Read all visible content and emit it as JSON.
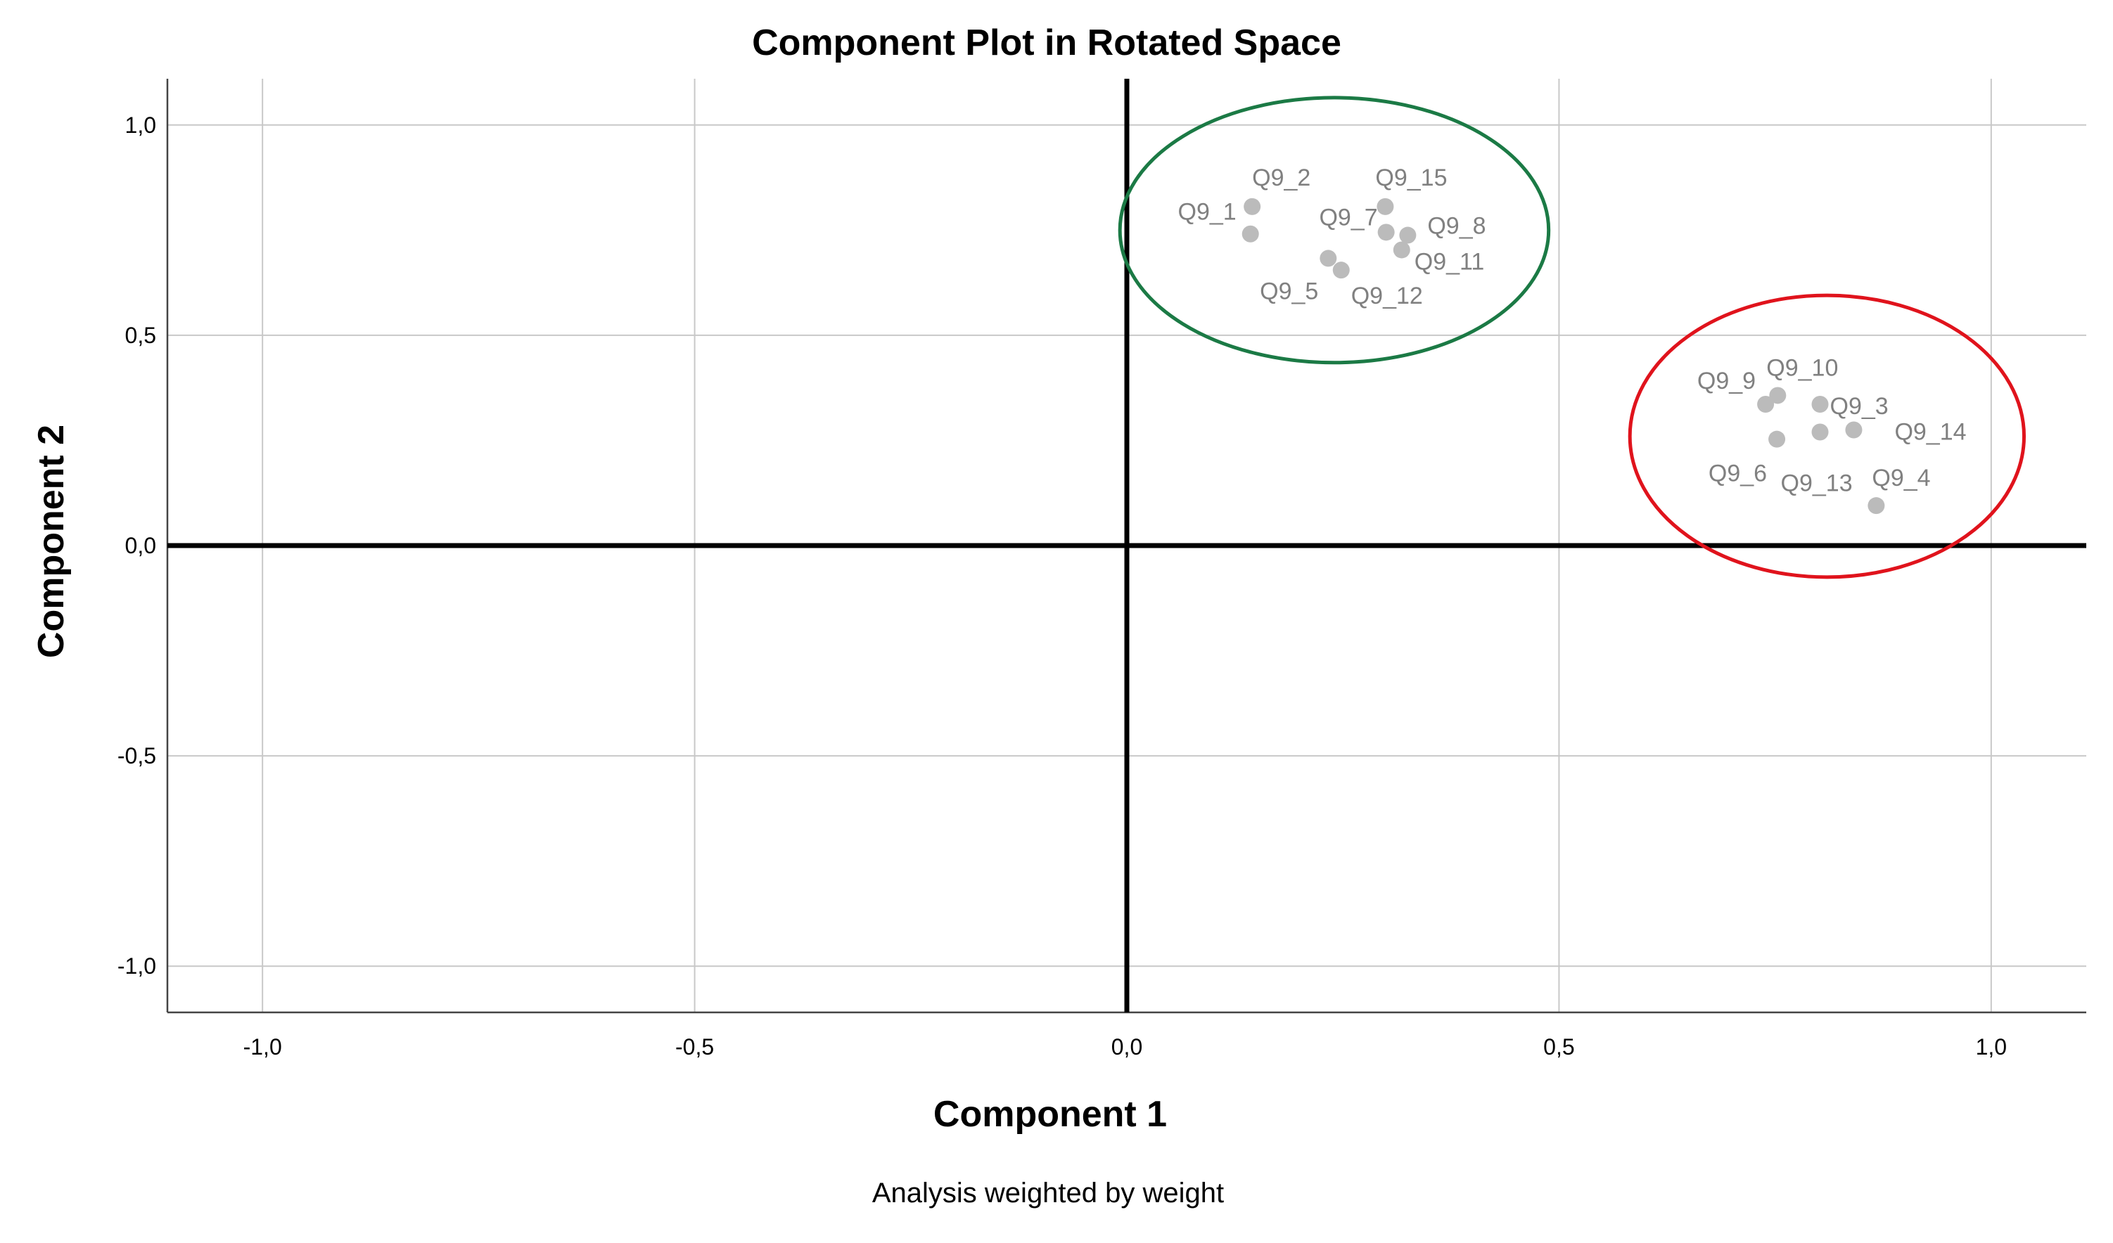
{
  "chart_data": {
    "type": "scatter",
    "title": "Component Plot in Rotated Space",
    "xlabel": "Component 1",
    "ylabel": "Component 2",
    "footnote": "Analysis weighted by weight",
    "xlim": [
      -1.11,
      1.11
    ],
    "ylim": [
      -1.11,
      1.11
    ],
    "xticks": [
      -1.0,
      -0.5,
      0.0,
      0.5,
      1.0
    ],
    "yticks": [
      -1.0,
      -0.5,
      0.0,
      0.5,
      1.0
    ],
    "xtick_labels": [
      "-1,0",
      "-0,5",
      "0,0",
      "0,5",
      "1,0"
    ],
    "ytick_labels": [
      "-1,0",
      "-0,5",
      "0,0",
      "0,5",
      "1,0"
    ],
    "grid": true,
    "point_color": "#bbbbbb",
    "points": [
      {
        "label": "Q9_1",
        "x": 0.143,
        "y": 0.741
      },
      {
        "label": "Q9_2",
        "x": 0.145,
        "y": 0.806
      },
      {
        "label": "Q9_15",
        "x": 0.299,
        "y": 0.806
      },
      {
        "label": "Q9_7",
        "x": 0.3,
        "y": 0.745
      },
      {
        "label": "Q9_8",
        "x": 0.325,
        "y": 0.738
      },
      {
        "label": "Q9_11",
        "x": 0.318,
        "y": 0.703
      },
      {
        "label": "Q9_5",
        "x": 0.233,
        "y": 0.683
      },
      {
        "label": "Q9_12",
        "x": 0.248,
        "y": 0.655
      },
      {
        "label": "Q9_9",
        "x": 0.739,
        "y": 0.336
      },
      {
        "label": "Q9_10",
        "x": 0.753,
        "y": 0.357
      },
      {
        "label": "Q9_3",
        "x": 0.802,
        "y": 0.336
      },
      {
        "label": "Q9_14",
        "x": 0.841,
        "y": 0.275
      },
      {
        "label": "Q9_13",
        "x": 0.802,
        "y": 0.27
      },
      {
        "label": "Q9_6",
        "x": 0.752,
        "y": 0.253
      },
      {
        "label": "Q9_4",
        "x": 0.867,
        "y": 0.095
      }
    ],
    "annotations": [
      {
        "shape": "ellipse",
        "color": "#1b7a45",
        "cx": 0.24,
        "cy": 0.75,
        "rx": 0.248,
        "ry": 0.315
      },
      {
        "shape": "ellipse",
        "color": "#e0131c",
        "cx": 0.81,
        "cy": 0.26,
        "rx": 0.228,
        "ry": 0.335
      }
    ]
  }
}
